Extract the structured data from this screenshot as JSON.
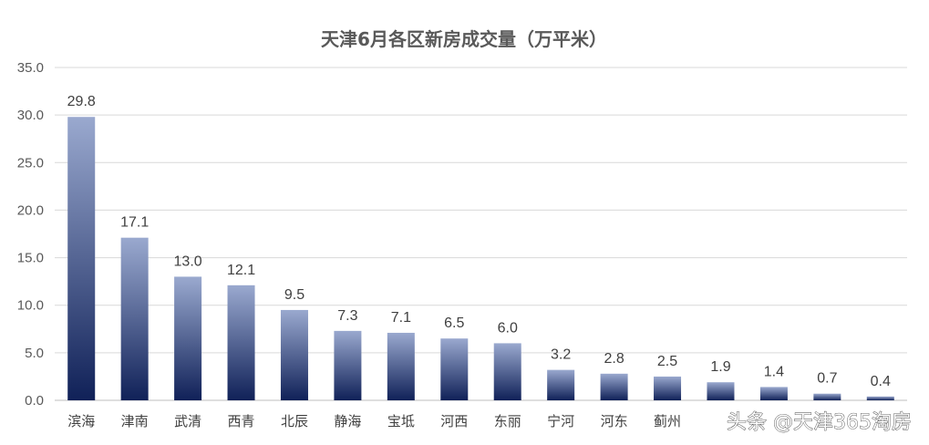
{
  "chart_data": {
    "type": "bar",
    "title": "天津6月各区新房成交量（万平米）",
    "xlabel": "",
    "ylabel": "",
    "ylim": [
      0,
      35
    ],
    "yticks": [
      "0.0",
      "5.0",
      "10.0",
      "15.0",
      "20.0",
      "25.0",
      "30.0",
      "35.0"
    ],
    "grid": true,
    "legend": "none",
    "categories": [
      "滨海",
      "津南",
      "武清",
      "西青",
      "北辰",
      "静海",
      "宝坻",
      "河西",
      "东丽",
      "宁河",
      "河东",
      "蓟州",
      "",
      "",
      "",
      ""
    ],
    "values": [
      29.8,
      17.1,
      13.0,
      12.1,
      9.5,
      7.3,
      7.1,
      6.5,
      6.0,
      3.2,
      2.8,
      2.5,
      1.9,
      1.4,
      0.7,
      0.4
    ],
    "data_labels": [
      "29.8",
      "17.1",
      "13.0",
      "12.1",
      "9.5",
      "7.3",
      "7.1",
      "6.5",
      "6.0",
      "3.2",
      "2.8",
      "2.5",
      "1.9",
      "1.4",
      "0.7",
      "0.4"
    ],
    "colors": {
      "bar_top": "#9aa9cf",
      "bar_bottom": "#102158"
    }
  },
  "watermark": "头条 @天津365淘房"
}
